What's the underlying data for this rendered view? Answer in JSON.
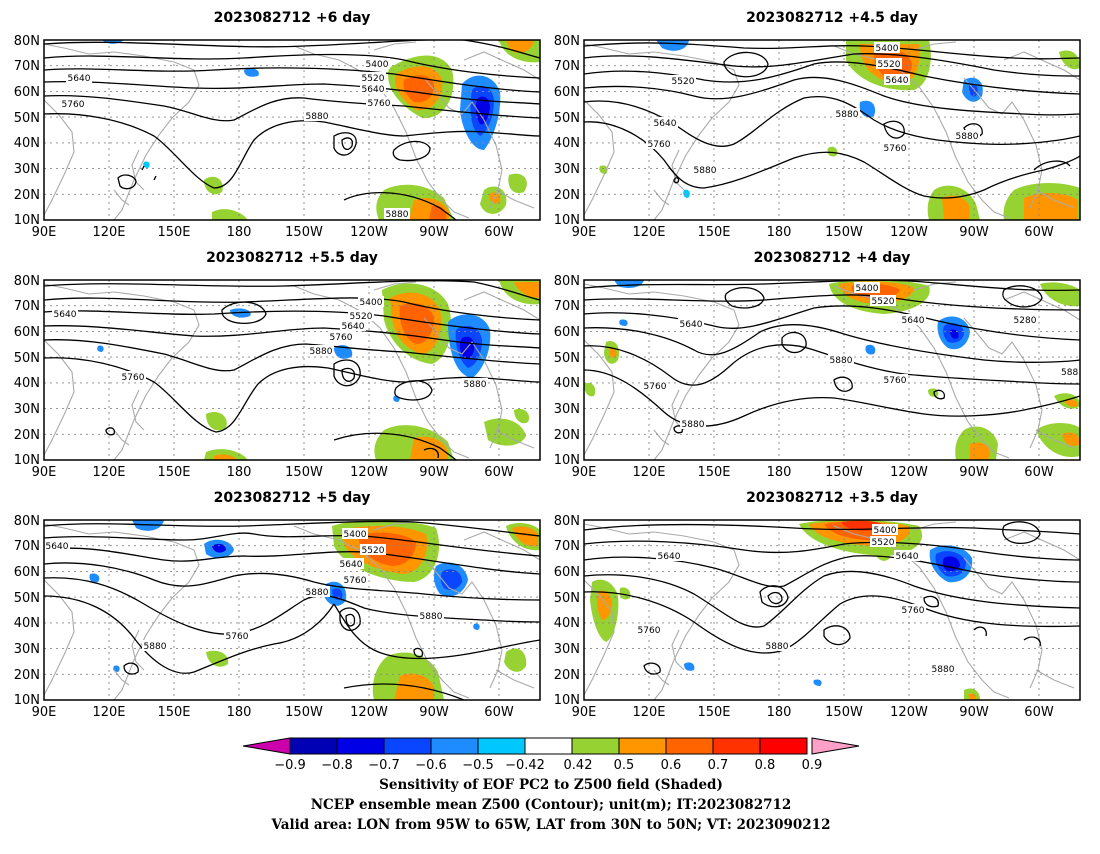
{
  "panels": [
    {
      "title": "2023082712 +6 day",
      "contour_labels": [
        "5400",
        "5520",
        "5640",
        "5760",
        "5880",
        "5640",
        "5760",
        "5880"
      ]
    },
    {
      "title": "2023082712 +4.5 day",
      "contour_labels": [
        "5400",
        "5520",
        "5640",
        "5520",
        "5640",
        "5760",
        "5880",
        "5880",
        "5760",
        "5880"
      ]
    },
    {
      "title": "2023082712 +5.5 day",
      "contour_labels": [
        "5400",
        "5520",
        "5640",
        "5760",
        "5880",
        "5640",
        "5760",
        "5880"
      ]
    },
    {
      "title": "2023082712 +4 day",
      "contour_labels": [
        "5400",
        "5520",
        "5640",
        "5280",
        "5640",
        "5880",
        "5760",
        "5760",
        "5880",
        "588"
      ]
    },
    {
      "title": "2023082712 +5 day",
      "contour_labels": [
        "5400",
        "5520",
        "5640",
        "5760",
        "5880",
        "5880",
        "5640",
        "5760",
        "5880"
      ]
    },
    {
      "title": "2023082712 +3.5 day",
      "contour_labels": [
        "5400",
        "5520",
        "5640",
        "5640",
        "5760",
        "5760",
        "5880",
        "5880"
      ]
    }
  ],
  "axes": {
    "lat_ticks": [
      "80N",
      "70N",
      "60N",
      "50N",
      "40N",
      "30N",
      "20N",
      "10N"
    ],
    "lon_ticks": [
      "90E",
      "120E",
      "150E",
      "180",
      "150W",
      "120W",
      "90W",
      "60W"
    ]
  },
  "colorbar": {
    "labels": [
      "−0.9",
      "−0.8",
      "−0.7",
      "−0.6",
      "−0.5",
      "−0.42",
      "0.42",
      "0.5",
      "0.6",
      "0.7",
      "0.8",
      "0.9"
    ],
    "colors": [
      "#cc00aa",
      "#0000b4",
      "#0000e6",
      "#0a46ff",
      "#1e8cff",
      "#00c8ff",
      "#ffffff",
      "#96d232",
      "#ff9600",
      "#ff6400",
      "#ff3200",
      "#ff0000",
      "#ffa0c8"
    ]
  },
  "footer": {
    "line1": "Sensitivity of EOF PC2 to Z500 field (Shaded)",
    "line2": "NCEP ensemble mean Z500 (Contour); unit(m); IT:2023082712",
    "line3": "Valid area: LON from 95W to 65W, LAT from 30N to 50N; VT: 2023090212"
  }
}
